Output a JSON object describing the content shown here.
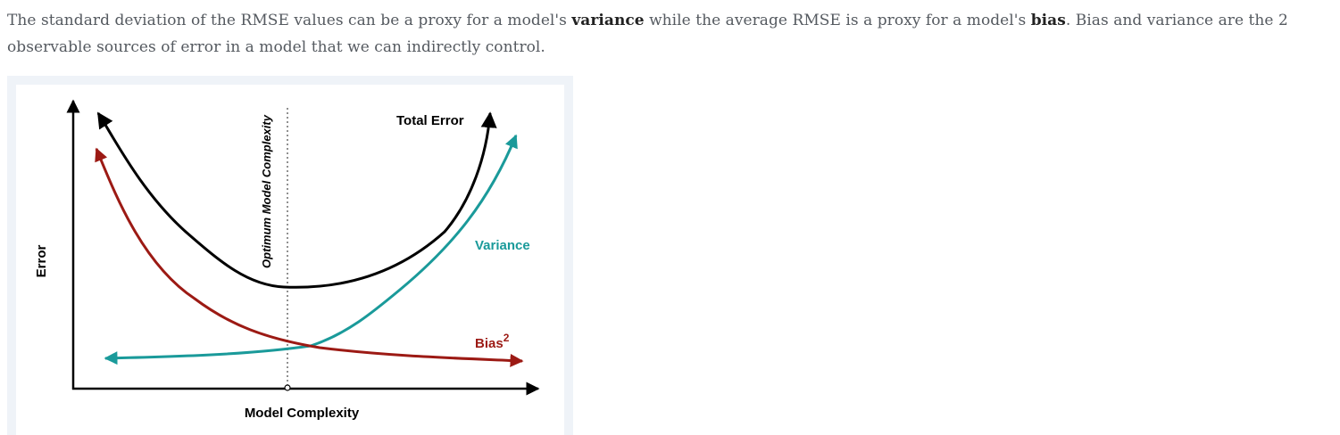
{
  "paragraph": {
    "part1": "The standard deviation of the RMSE values can be a proxy for a model's ",
    "bold1": "variance",
    "part2": " while the average RMSE is a proxy for a model's ",
    "bold2": "bias",
    "part3": ". Bias and variance are the 2 observable sources of error in a model that we can indirectly control."
  },
  "figure": {
    "y_axis_label": "Error",
    "x_axis_label": "Model Complexity",
    "optimum_label": "Optimum Model Complexity",
    "total_error_label": "Total Error",
    "variance_label": "Variance",
    "bias_label": "Bias",
    "bias_superscript": "2",
    "colors": {
      "total_error": "#000000",
      "variance": "#1a9a9a",
      "bias": "#9c1a14",
      "axis": "#000000"
    }
  }
}
